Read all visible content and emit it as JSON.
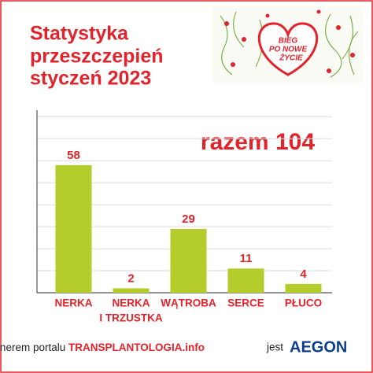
{
  "chart_data": {
    "type": "bar",
    "title": [
      "Statystyka",
      "przeszczepień",
      "styczeń 2023"
    ],
    "categories": [
      "NERKA",
      [
        "NERKA",
        "I TRZUSTKA"
      ],
      "WĄTROBA",
      "SERCE",
      "PŁUCO"
    ],
    "values": [
      58,
      2,
      29,
      11,
      4
    ],
    "color": "#b5cd2c",
    "label_color": "#e2232b",
    "ylim": [
      0,
      83
    ],
    "yticks": [
      0,
      10,
      20,
      30,
      40,
      50,
      60,
      70,
      80
    ],
    "grid": true,
    "annotation": "razem 104",
    "logo_text": [
      "BIEG",
      "PO NOWE",
      "ŻYCIE"
    ],
    "footer": {
      "prefix": "Partnerem portalu",
      "site": "TRANSPLANTOLOGIA.info",
      "suffix": "jest",
      "partner": "AEGON"
    }
  }
}
